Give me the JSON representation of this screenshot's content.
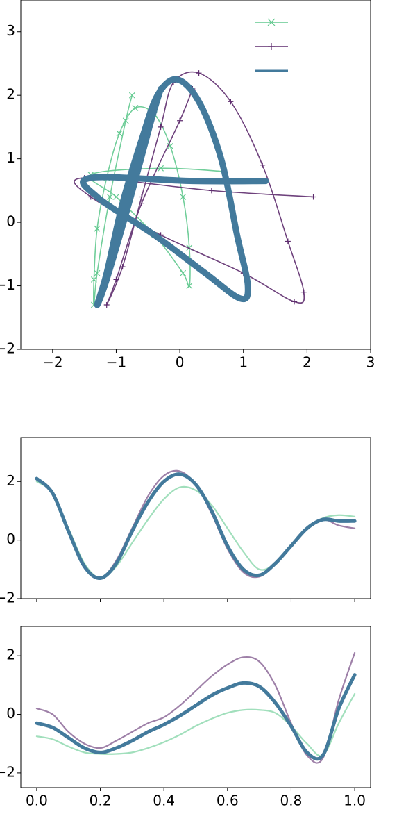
{
  "chart_data": [
    {
      "type": "line",
      "xlim": [
        -2.5,
        3
      ],
      "ylim": [
        -2,
        3.5
      ],
      "xticks": [
        {
          "value": -2,
          "label": "−2"
        },
        {
          "value": -1,
          "label": "−1"
        },
        0,
        1,
        2,
        3
      ],
      "yticks": [
        {
          "value": -2,
          "label": "−2"
        },
        {
          "value": -1,
          "label": "−1"
        },
        0,
        1,
        2,
        3
      ],
      "legend": "upper right",
      "series": [
        {
          "color": "#62c98f",
          "marker": "x",
          "x": [
            -0.75,
            -0.85,
            -1.1,
            -1.3,
            -1.35,
            -1.35,
            -1.3,
            -1.15,
            -0.95,
            -0.7,
            -0.4,
            -0.15,
            0.05,
            0.15,
            0.15,
            0.05,
            -0.4,
            -1.0,
            -1.4,
            -0.3,
            0.7
          ],
          "values": [
            2.0,
            1.6,
            0.4,
            -0.8,
            -1.3,
            -0.9,
            -0.1,
            0.7,
            1.4,
            1.8,
            1.7,
            1.2,
            0.4,
            -0.4,
            -1.0,
            -0.8,
            -0.2,
            0.4,
            0.75,
            0.85,
            0.8
          ]
        },
        {
          "color": "#5e2c6e",
          "marker": "+",
          "x": [
            0.2,
            0.0,
            -0.6,
            -1.0,
            -1.15,
            -0.9,
            -0.6,
            -0.3,
            -0.1,
            0.3,
            0.8,
            1.3,
            1.7,
            1.95,
            1.8,
            1.0,
            -0.3,
            -1.4,
            -1.5,
            0.5,
            2.1
          ],
          "values": [
            2.1,
            1.6,
            0.3,
            -0.9,
            -1.3,
            -0.7,
            0.4,
            1.5,
            2.2,
            2.35,
            1.9,
            0.9,
            -0.3,
            -1.1,
            -1.25,
            -0.8,
            -0.2,
            0.4,
            0.7,
            0.5,
            0.4
          ]
        },
        {
          "color": "#437a9c",
          "x": [
            -0.3,
            -0.45,
            -0.8,
            -1.15,
            -1.3,
            -1.15,
            -0.9,
            -0.6,
            -0.35,
            -0.05,
            0.3,
            0.65,
            0.9,
            1.07,
            0.95,
            0.4,
            -0.4,
            -1.3,
            -1.4,
            0.2,
            1.35
          ],
          "values": [
            2.1,
            1.6,
            0.3,
            -0.9,
            -1.3,
            -0.8,
            0.3,
            1.3,
            2.0,
            2.25,
            1.9,
            1.0,
            -0.2,
            -1.0,
            -1.2,
            -0.8,
            -0.2,
            0.4,
            0.7,
            0.65,
            0.65
          ]
        }
      ]
    },
    {
      "type": "line",
      "xlim": [
        -0.05,
        1.05
      ],
      "ylim": [
        -2,
        3.5
      ],
      "yticks": [
        {
          "value": -2,
          "label": "−2"
        },
        0,
        2
      ],
      "x": [
        0,
        0.05,
        0.1,
        0.15,
        0.2,
        0.25,
        0.3,
        0.35,
        0.4,
        0.45,
        0.5,
        0.55,
        0.6,
        0.65,
        0.7,
        0.75,
        0.8,
        0.85,
        0.9,
        0.95,
        1
      ],
      "series": [
        {
          "color": "#62c98f",
          "values": [
            2.0,
            1.6,
            0.4,
            -0.8,
            -1.3,
            -0.9,
            -0.1,
            0.7,
            1.4,
            1.8,
            1.7,
            1.2,
            0.4,
            -0.4,
            -1.0,
            -0.8,
            -0.2,
            0.4,
            0.75,
            0.85,
            0.8
          ]
        },
        {
          "color": "#5e2c6e",
          "values": [
            2.1,
            1.6,
            0.3,
            -0.9,
            -1.3,
            -0.7,
            0.4,
            1.5,
            2.2,
            2.35,
            1.9,
            0.9,
            -0.3,
            -1.1,
            -1.25,
            -0.8,
            -0.2,
            0.4,
            0.7,
            0.5,
            0.4
          ]
        },
        {
          "color": "#437a9c",
          "values": [
            2.1,
            1.6,
            0.3,
            -0.9,
            -1.3,
            -0.8,
            0.3,
            1.3,
            2.0,
            2.25,
            1.9,
            1.0,
            -0.2,
            -1.0,
            -1.2,
            -0.8,
            -0.2,
            0.4,
            0.7,
            0.65,
            0.65
          ]
        }
      ]
    },
    {
      "type": "line",
      "xlim": [
        -0.05,
        1.05
      ],
      "ylim": [
        -2.5,
        3
      ],
      "xticks": [
        {
          "value": 0,
          "label": "0.0"
        },
        0.2,
        0.4,
        0.6,
        0.8,
        {
          "value": 1,
          "label": "1.0"
        }
      ],
      "yticks": [
        {
          "value": -2,
          "label": "−2"
        },
        0,
        2
      ],
      "x": [
        0,
        0.05,
        0.1,
        0.15,
        0.2,
        0.25,
        0.3,
        0.35,
        0.4,
        0.45,
        0.5,
        0.55,
        0.6,
        0.65,
        0.7,
        0.75,
        0.8,
        0.85,
        0.9,
        0.95,
        1
      ],
      "series": [
        {
          "color": "#62c98f",
          "values": [
            -0.75,
            -0.85,
            -1.1,
            -1.3,
            -1.35,
            -1.35,
            -1.3,
            -1.15,
            -0.95,
            -0.7,
            -0.4,
            -0.15,
            0.05,
            0.15,
            0.15,
            0.05,
            -0.4,
            -1.0,
            -1.4,
            -0.3,
            0.7
          ]
        },
        {
          "color": "#5e2c6e",
          "values": [
            0.2,
            0.0,
            -0.6,
            -1.0,
            -1.15,
            -0.9,
            -0.6,
            -0.3,
            -0.1,
            0.3,
            0.8,
            1.3,
            1.7,
            1.95,
            1.8,
            1.0,
            -0.3,
            -1.4,
            -1.5,
            0.5,
            2.1
          ]
        },
        {
          "color": "#437a9c",
          "values": [
            -0.3,
            -0.45,
            -0.8,
            -1.15,
            -1.3,
            -1.15,
            -0.9,
            -0.6,
            -0.35,
            -0.05,
            0.3,
            0.65,
            0.9,
            1.07,
            0.95,
            0.4,
            -0.4,
            -1.3,
            -1.4,
            0.2,
            1.35
          ]
        }
      ]
    }
  ]
}
